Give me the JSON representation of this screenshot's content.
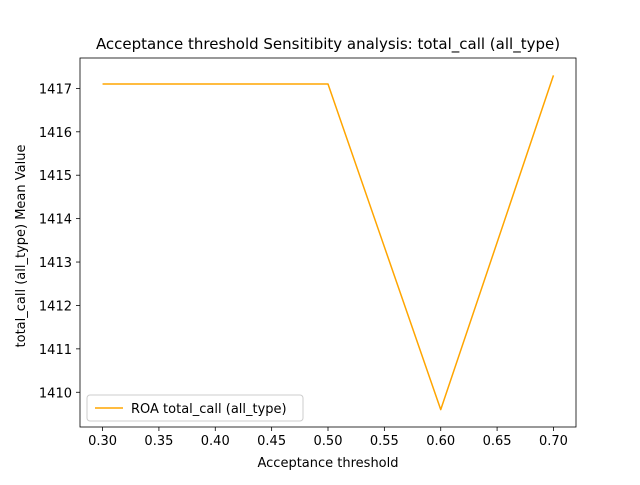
{
  "chart_data": {
    "type": "line",
    "title": "Acceptance threshold Sensitibity analysis: total_call (all_type)",
    "xlabel": "Acceptance threshold",
    "ylabel": "total_call (all_type) Mean Value",
    "x": [
      0.3,
      0.4,
      0.5,
      0.6,
      0.7
    ],
    "series": [
      {
        "name": "ROA total_call (all_type)",
        "values": [
          1417.1,
          1417.1,
          1417.1,
          1409.6,
          1417.3
        ],
        "color": "#ffa500"
      }
    ],
    "xlim": [
      0.28,
      0.72
    ],
    "ylim": [
      1409.2,
      1417.7
    ],
    "xticks": [
      "0.30",
      "0.35",
      "0.40",
      "0.45",
      "0.50",
      "0.55",
      "0.60",
      "0.65",
      "0.70"
    ],
    "yticks": [
      "1410",
      "1411",
      "1412",
      "1413",
      "1414",
      "1415",
      "1416",
      "1417"
    ],
    "grid": false,
    "legend_position": "lower-left"
  }
}
